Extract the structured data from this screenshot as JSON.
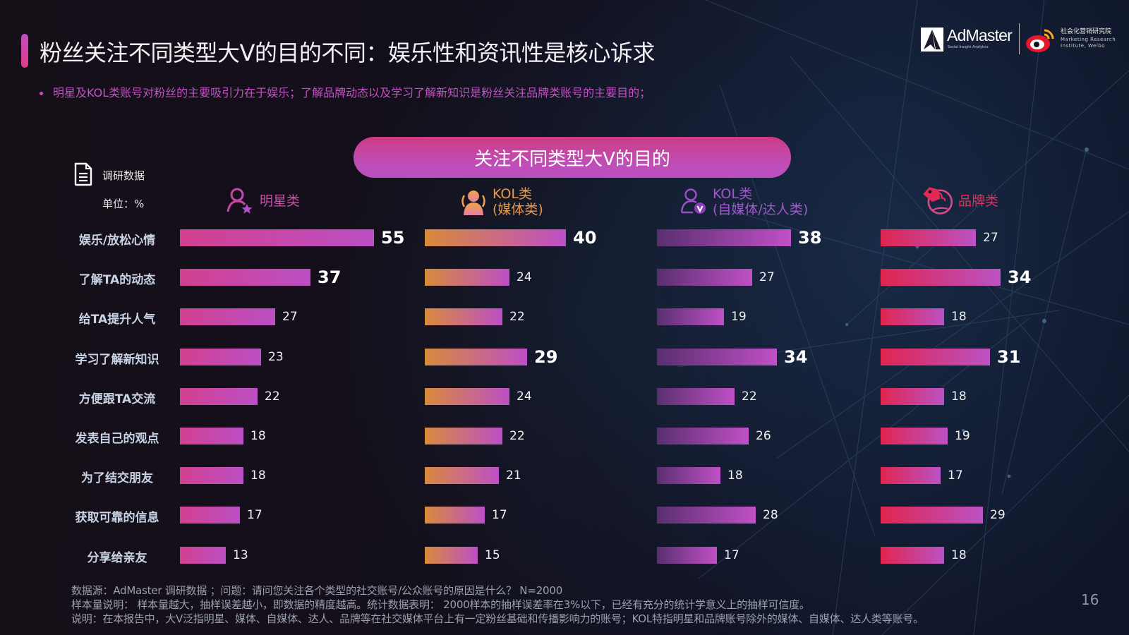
{
  "header": {
    "title": "粉丝关注不同类型大V的目的不同：娱乐性和资讯性是核心诉求",
    "subtitle": "明星及KOL类账号对粉丝的主要吸引力在于娱乐；了解品牌动态以及学习了解新知识是粉丝关注品牌类账号的主要目的；"
  },
  "logos": {
    "admaster": "AdMaster",
    "admaster_tagline": "Social Insight Analytics",
    "weibo_institute_cn": "社会化营销研究院",
    "weibo_institute_en_1": "Marketing Research",
    "weibo_institute_en_2": "Institute, Weibo"
  },
  "panel": {
    "source_label": "调研数据",
    "unit_label": "单位：%"
  },
  "colors": {
    "accent_pink": "#c052c2",
    "star_start": "#d2408f",
    "star_end": "#bb4fc4",
    "media_start": "#d98a3c",
    "media_end": "#bd4fc6",
    "self_start": "#5a2f6f",
    "self_end": "#c050c6",
    "brand_start": "#e0254f",
    "brand_end": "#bb52c4"
  },
  "chart_data": {
    "type": "bar",
    "orientation": "horizontal",
    "title": "关注不同类型大V的目的",
    "unit": "%",
    "categories": [
      "娱乐/放松心情",
      "了解TA的动态",
      "给TA提升人气",
      "学习了解新知识",
      "方便跟TA交流",
      "发表自己的观点",
      "为了结交朋友",
      "获取可靠的信息",
      "分享给亲友"
    ],
    "series": [
      {
        "name": "明星类",
        "name_line2": "",
        "icon": "star-user-icon",
        "values": [
          55,
          37,
          27,
          23,
          22,
          18,
          18,
          17,
          13
        ],
        "highlight": [
          0,
          1
        ]
      },
      {
        "name": "KOL类",
        "name_line2": "(媒体类)",
        "icon": "group-users-icon",
        "values": [
          40,
          24,
          22,
          29,
          24,
          22,
          21,
          17,
          15
        ],
        "highlight": [
          0,
          3
        ]
      },
      {
        "name": "KOL类",
        "name_line2": "(自媒体/达人类)",
        "icon": "verified-user-icon",
        "values": [
          38,
          27,
          19,
          34,
          22,
          26,
          18,
          28,
          17
        ],
        "highlight": [
          0,
          3
        ]
      },
      {
        "name": "品牌类",
        "name_line2": "",
        "icon": "brand-tag-globe-icon",
        "values": [
          27,
          34,
          18,
          31,
          18,
          19,
          17,
          29,
          18
        ],
        "highlight": [
          1,
          3
        ]
      }
    ]
  },
  "footnotes": [
    "数据源：AdMaster 调研数据 ；问题：请问您关注各个类型的社交账号/公众账号的原因是什么？  N=2000",
    "样本量说明： 样本量越大，抽样误差越小，即数据的精度越高。统计数据表明： 2000样本的抽样误差率在3%以下，已经有充分的统计学意义上的抽样可信度。",
    "说明：在本报告中，大V泛指明星、媒体、自媒体、达人、品牌等在社交媒体平台上有一定粉丝基础和传播影响力的账号；KOL特指明星和品牌账号除外的媒体、自媒体、达人类等账号。"
  ],
  "page_number": "16"
}
